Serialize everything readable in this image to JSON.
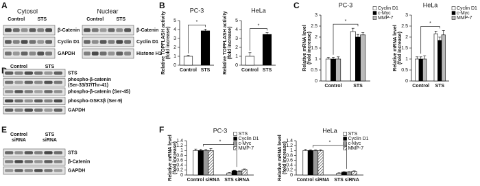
{
  "panel_labels": [
    "A",
    "B",
    "C",
    "D",
    "E",
    "F"
  ],
  "blots": [
    {
      "title": "Cytosol",
      "lanes": [
        [
          "Control"
        ],
        [
          "STS"
        ]
      ],
      "rows": [
        [
          "β-Catenin"
        ],
        [
          "Cyclin D1"
        ],
        [
          "GAPDH"
        ]
      ]
    },
    {
      "title": "Nuclear",
      "lanes": [
        [
          "Control"
        ],
        [
          "STS"
        ]
      ],
      "rows": [
        [
          "β-Catenin"
        ],
        [
          "Cyclin D1"
        ],
        [
          "Histone H1"
        ]
      ]
    },
    {
      "lanes": [
        [
          "Control"
        ],
        [
          "STS"
        ]
      ],
      "rows": [
        [
          "STS"
        ],
        [
          "phospho-β-catenin",
          "(Ser-33/37/Thr-41)"
        ],
        [
          "phospho-β-catenin (Ser-45)"
        ],
        [
          "phospho-GSK3β (Ser-9)"
        ],
        [
          "GAPDH"
        ]
      ]
    },
    {
      "lanes": [
        [
          "Control",
          "siRNA"
        ],
        [
          "STS",
          "siRNA"
        ]
      ],
      "rows": [
        [
          "STS"
        ],
        [
          "β-Catenin"
        ],
        [
          "GAPDH"
        ]
      ]
    }
  ],
  "chart_data": [
    {
      "type": "bar",
      "title": "PC-3",
      "ylabel": [
        "Relative TOPFLASH activity",
        "(fold increase)"
      ],
      "categories": [
        "Control",
        "STS"
      ],
      "values": [
        1,
        3.85
      ],
      "errors": [
        0.1,
        0.2
      ],
      "colors": [
        "#ffffff",
        "#000000"
      ],
      "ylim": [
        0,
        5
      ],
      "yticks": [
        0,
        1,
        2,
        3,
        4,
        5
      ],
      "annotation": "*"
    },
    {
      "type": "bar",
      "title": "HeLa",
      "ylabel": [
        "Relative TOPFLASH activity",
        "(fold increase)"
      ],
      "categories": [
        "Control",
        "STS"
      ],
      "values": [
        1,
        3.45
      ],
      "errors": [
        0.4,
        0.2
      ],
      "colors": [
        "#ffffff",
        "#000000"
      ],
      "ylim": [
        0,
        5
      ],
      "yticks": [
        0,
        1,
        2,
        3,
        4,
        5
      ],
      "annotation": "*"
    },
    {
      "type": "bar",
      "title": "PC-3",
      "ylabel": [
        "Relative mRNA level",
        "(fold increase)"
      ],
      "categories": [
        "Control",
        "STS"
      ],
      "series": [
        {
          "name": "Cyclin D1",
          "color": "#ffffff",
          "values": [
            1,
            2.25
          ],
          "errors": [
            0.08,
            0.15
          ]
        },
        {
          "name": "c-Myc",
          "color": "#000000",
          "values": [
            1,
            2.0
          ],
          "errors": [
            0.08,
            0.12
          ]
        },
        {
          "name": "MMP-7",
          "color": "#bbbbbb",
          "values": [
            1,
            2.1
          ],
          "errors": [
            0.1,
            0.1
          ]
        }
      ],
      "ylim": [
        0,
        3
      ],
      "yticks": [
        0,
        0.5,
        1,
        1.5,
        2,
        2.5,
        3
      ],
      "annotation": "*"
    },
    {
      "type": "bar",
      "title": "HeLa",
      "ylabel": [
        "Relative mRNA level",
        "(fold increase)"
      ],
      "categories": [
        "Control",
        "STS"
      ],
      "series": [
        {
          "name": "Cyclin D1",
          "color": "#ffffff",
          "values": [
            1,
            2.15
          ],
          "errors": [
            0.1,
            0.12
          ]
        },
        {
          "name": "c-Myc",
          "color": "#000000",
          "values": [
            1,
            1.85
          ],
          "errors": [
            0.1,
            0.15
          ]
        },
        {
          "name": "MMP-7",
          "color": "#bbbbbb",
          "values": [
            1,
            2.1
          ],
          "errors": [
            0.15,
            0.2
          ]
        }
      ],
      "ylim": [
        0,
        3
      ],
      "yticks": [
        0,
        0.5,
        1,
        1.5,
        2,
        2.5,
        3
      ],
      "annotation": "*"
    },
    {
      "type": "bar",
      "title": "PC-3",
      "ylabel": [
        "Relative mRNA level",
        "(fold increase)"
      ],
      "categories": [
        "Control siRNA",
        "STS siRNA"
      ],
      "series": [
        {
          "name": "STS",
          "color": "#ffffff",
          "values": [
            1,
            0.08
          ],
          "errors": [
            0.06,
            0.02
          ]
        },
        {
          "name": "Cyclin D1",
          "color": "#000000",
          "values": [
            1,
            0.17
          ],
          "errors": [
            0.05,
            0.02
          ]
        },
        {
          "name": "c-Myc",
          "color": "#999999",
          "values": [
            1,
            0.15
          ],
          "errors": [
            0.05,
            0.02
          ]
        },
        {
          "name": "MMP-7",
          "color": "#ffffff",
          "pattern": "hatch",
          "values": [
            1,
            0.22
          ],
          "errors": [
            0.08,
            0.03
          ]
        }
      ],
      "ylim": [
        0,
        1.4
      ],
      "yticks": [
        0,
        0.2,
        0.4,
        0.6,
        0.8,
        1,
        1.2,
        1.4
      ],
      "annotation": "*"
    },
    {
      "type": "bar",
      "title": "HeLa",
      "ylabel": [
        "Relative mRNA level",
        "(fold increase)"
      ],
      "categories": [
        "Control siRNA",
        "STS siRNA"
      ],
      "series": [
        {
          "name": "STS",
          "color": "#ffffff",
          "values": [
            1,
            0.07
          ],
          "errors": [
            0.04,
            0.02
          ]
        },
        {
          "name": "Cyclin D1",
          "color": "#000000",
          "values": [
            1,
            0.12
          ],
          "errors": [
            0.03,
            0.02
          ]
        },
        {
          "name": "c-Myc",
          "color": "#999999",
          "values": [
            1,
            0.12
          ],
          "errors": [
            0.03,
            0.02
          ]
        },
        {
          "name": "MMP-7",
          "color": "#ffffff",
          "pattern": "hatch",
          "values": [
            1,
            0.15
          ],
          "errors": [
            0.03,
            0.02
          ]
        }
      ],
      "ylim": [
        0,
        1.4
      ],
      "yticks": [
        0,
        0.2,
        0.4,
        0.6,
        0.8,
        1,
        1.2,
        1.4
      ],
      "annotation": "*"
    }
  ]
}
